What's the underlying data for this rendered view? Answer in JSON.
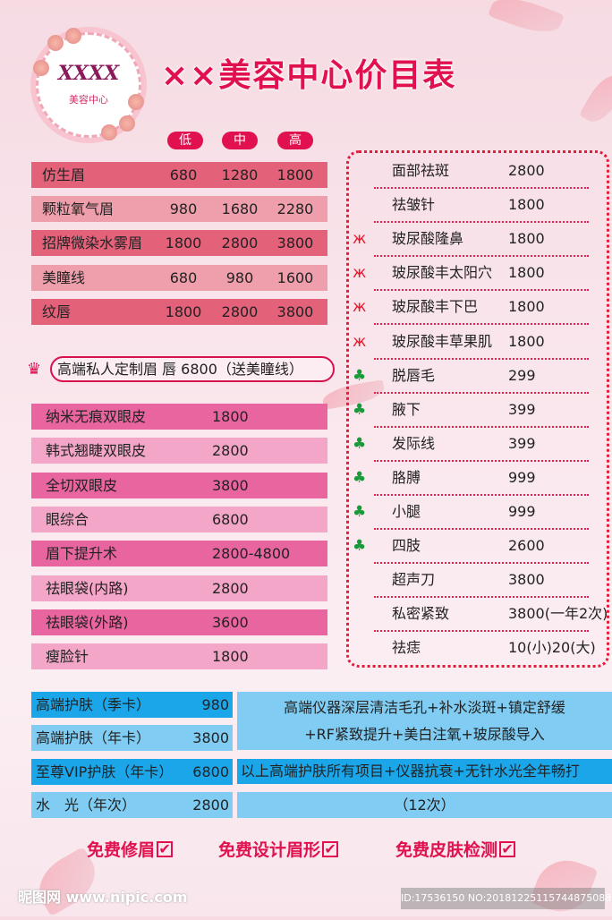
{
  "logo": {
    "script": "XXXX",
    "sub": "美容中心"
  },
  "title": "××美容中心价目表",
  "tiers": [
    "低",
    "中",
    "高"
  ],
  "eyebrow_items": [
    {
      "name": "仿生眉",
      "low": "680",
      "mid": "1280",
      "high": "1800"
    },
    {
      "name": "颗粒氧气眉",
      "low": "980",
      "mid": "1680",
      "high": "2280"
    },
    {
      "name": "招牌微染水雾眉",
      "low": "1800",
      "mid": "2800",
      "high": "3800"
    },
    {
      "name": "美瞳线",
      "low": "680",
      "mid": "980",
      "high": "1600"
    },
    {
      "name": "纹唇",
      "low": "1800",
      "mid": "2800",
      "high": "3800"
    }
  ],
  "special": "高端私人定制眉 唇    6800（送美瞳线）",
  "eye_items": [
    {
      "name": "纳米无痕双眼皮",
      "price": "1800"
    },
    {
      "name": "韩式翘睫双眼皮",
      "price": "2800"
    },
    {
      "name": "全切双眼皮",
      "price": "3800"
    },
    {
      "name": "眼综合",
      "price": "6800"
    },
    {
      "name": "眉下提升术",
      "price": "2800-4800"
    },
    {
      "name": "祛眼袋(内路)",
      "price": "2800"
    },
    {
      "name": "祛眼袋(外路)",
      "price": "3600"
    },
    {
      "name": "瘦脸针",
      "price": "1800"
    }
  ],
  "right_items": [
    {
      "name": "面部祛斑",
      "price": "2800",
      "icon": ""
    },
    {
      "name": "祛皱针",
      "price": "1800",
      "icon": ""
    },
    {
      "name": "玻尿酸隆鼻",
      "price": "1800",
      "icon": "butterfly"
    },
    {
      "name": "玻尿酸丰太阳穴",
      "price": "1800",
      "icon": "butterfly"
    },
    {
      "name": "玻尿酸丰下巴",
      "price": "1800",
      "icon": "butterfly"
    },
    {
      "name": "玻尿酸丰草果肌",
      "price": "1800",
      "icon": "butterfly"
    },
    {
      "name": "脱唇毛",
      "price": "299",
      "icon": "clover"
    },
    {
      "name": "腋下",
      "price": "399",
      "icon": "clover"
    },
    {
      "name": "发际线",
      "price": "399",
      "icon": "clover"
    },
    {
      "name": "胳膊",
      "price": "999",
      "icon": "clover"
    },
    {
      "name": "小腿",
      "price": "999",
      "icon": "clover"
    },
    {
      "name": "四肢",
      "price": "2600",
      "icon": "clover"
    },
    {
      "name": "超声刀",
      "price": "3800",
      "icon": ""
    },
    {
      "name": "私密紧致",
      "price": "3800(一年2次)",
      "icon": ""
    },
    {
      "name": "祛痣",
      "price": "10(小)20(大)",
      "icon": ""
    }
  ],
  "skin_items": [
    {
      "name": "高端护肤（季卡）",
      "price": "980"
    },
    {
      "name": "高端护肤（年卡）",
      "price": "3800"
    },
    {
      "name": "至尊VIP护肤（年卡）",
      "price": "6800"
    },
    {
      "name": "水　光（年次）",
      "price": "2800"
    }
  ],
  "skin_desc": {
    "line1": "高端仪器深层清洁毛孔+补水淡斑+镇定舒缓",
    "line2": "+RF紧致提升+美白注氧+玻尿酸导入",
    "line3": "以上高端护肤所有项目+仪器抗衰+无针水光全年畅打",
    "line4": "（12次）"
  },
  "free": [
    "免费修眉",
    "免费设计眉形",
    "免费皮肤检测"
  ],
  "watermark": {
    "site": "昵图网 www.nipic.com",
    "id": "ID:17536150 NO:20181225115744875088"
  },
  "colors": {
    "accent": "#e0114e",
    "blue": "#1ba6ea"
  }
}
